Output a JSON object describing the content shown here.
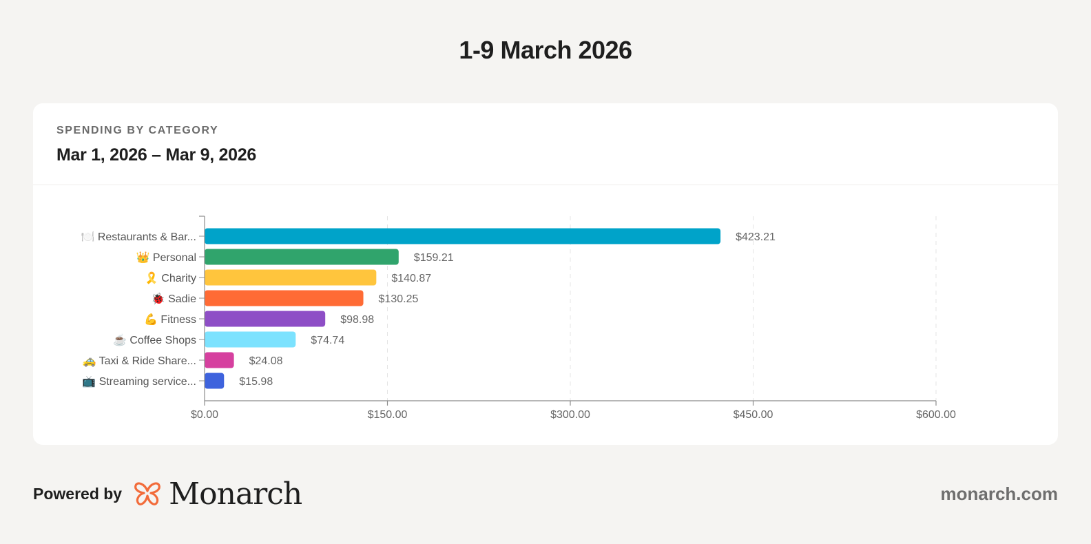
{
  "page": {
    "title": "1-9 March 2026"
  },
  "card": {
    "eyebrow": "SPENDING BY CATEGORY",
    "subtitle": "Mar 1, 2026 – Mar 9, 2026"
  },
  "footer": {
    "powered_by": "Powered by",
    "brand": "Monarch",
    "site": "monarch.com",
    "brand_color": "#f26b3a"
  },
  "chart_data": {
    "type": "bar",
    "orientation": "horizontal",
    "categories": [
      {
        "icon": "🍽️",
        "label": "Restaurants & Bar..."
      },
      {
        "icon": "👑",
        "label": "Personal"
      },
      {
        "icon": "🎗️",
        "label": "Charity"
      },
      {
        "icon": "🐞",
        "label": "Sadie"
      },
      {
        "icon": "💪",
        "label": "Fitness"
      },
      {
        "icon": "☕",
        "label": "Coffee Shops"
      },
      {
        "icon": "🚕",
        "label": "Taxi & Ride Share..."
      },
      {
        "icon": "📺",
        "label": "Streaming service..."
      }
    ],
    "values": [
      423.21,
      159.21,
      140.87,
      130.25,
      98.98,
      74.74,
      24.08,
      15.98
    ],
    "value_labels": [
      "$423.21",
      "$159.21",
      "$140.87",
      "$130.25",
      "$98.98",
      "$74.74",
      "$24.08",
      "$15.98"
    ],
    "colors": [
      "#00a3c9",
      "#30a46c",
      "#ffc53d",
      "#ff6b35",
      "#8e4ec6",
      "#7ce2fe",
      "#d6409f",
      "#3e63dd"
    ],
    "xlim": [
      0,
      600
    ],
    "x_ticks": [
      0,
      150,
      300,
      450,
      600
    ],
    "x_tick_labels": [
      "$0.00",
      "$150.00",
      "$300.00",
      "$450.00",
      "$600.00"
    ],
    "grid": "vertical dashed",
    "legend": "none"
  }
}
